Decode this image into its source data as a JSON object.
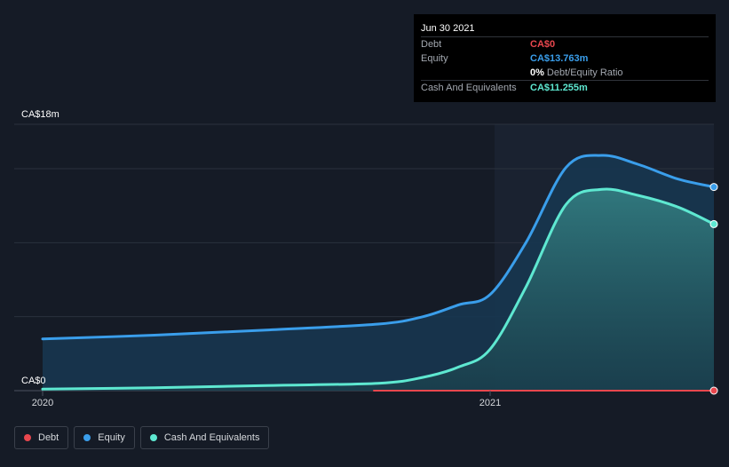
{
  "tooltip": {
    "date": "Jun 30 2021",
    "rows": [
      {
        "label": "Debt",
        "value": "CA$0",
        "color": "#e8474e"
      },
      {
        "label": "Equity",
        "value": "CA$13.763m",
        "color": "#3a9eeb"
      },
      {
        "label": "",
        "value": "0%",
        "extra": "Debt/Equity Ratio",
        "color": "#ffffff"
      },
      {
        "label": "Cash And Equivalents",
        "value": "CA$11.255m",
        "color": "#5ee8d1"
      }
    ]
  },
  "legend": [
    {
      "label": "Debt",
      "color": "#e8474e"
    },
    {
      "label": "Equity",
      "color": "#3a9eeb"
    },
    {
      "label": "Cash And Equivalents",
      "color": "#5ee8d1"
    }
  ],
  "chart_data": {
    "type": "area",
    "ylabel_top": "CA$18m",
    "ylabel_bottom": "CA$0",
    "ylim": [
      0,
      18
    ],
    "xlim": [
      2020.0,
      2021.5
    ],
    "x_ticks": [
      {
        "label": "2020",
        "value": 2020.0
      },
      {
        "label": "2021",
        "value": 2021.0
      }
    ],
    "series": [
      {
        "name": "Equity",
        "color": "#3a9eeb",
        "points": [
          [
            2020.0,
            3.5
          ],
          [
            2020.25,
            3.75
          ],
          [
            2020.5,
            4.1
          ],
          [
            2020.75,
            4.5
          ],
          [
            2020.85,
            5.0
          ],
          [
            2020.93,
            5.8
          ],
          [
            2021.0,
            6.5
          ],
          [
            2021.08,
            10.0
          ],
          [
            2021.17,
            15.1
          ],
          [
            2021.25,
            15.9
          ],
          [
            2021.33,
            15.3
          ],
          [
            2021.42,
            14.3
          ],
          [
            2021.5,
            13.763
          ]
        ]
      },
      {
        "name": "Cash And Equivalents",
        "color": "#5ee8d1",
        "points": [
          [
            2020.0,
            0.1
          ],
          [
            2020.25,
            0.2
          ],
          [
            2020.5,
            0.35
          ],
          [
            2020.75,
            0.5
          ],
          [
            2020.85,
            0.9
          ],
          [
            2020.93,
            1.6
          ],
          [
            2021.0,
            2.8
          ],
          [
            2021.08,
            7.0
          ],
          [
            2021.17,
            12.6
          ],
          [
            2021.25,
            13.6
          ],
          [
            2021.33,
            13.2
          ],
          [
            2021.42,
            12.4
          ],
          [
            2021.5,
            11.255
          ]
        ]
      },
      {
        "name": "Debt",
        "color": "#e8474e",
        "points": [
          [
            2020.74,
            0.0
          ],
          [
            2021.5,
            0.0
          ]
        ]
      }
    ]
  }
}
